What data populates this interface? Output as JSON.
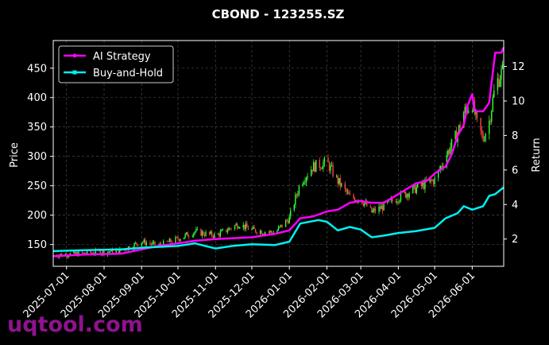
{
  "chart_data": {
    "type": "line",
    "title": "CBOND - 123255.SZ",
    "ylabel": "Price",
    "ylabel_right": "Return",
    "ylim": [
      113,
      497
    ],
    "ylim_right": [
      0.42,
      13.5
    ],
    "y_ticks": [
      150,
      200,
      250,
      300,
      350,
      400,
      450
    ],
    "y_ticks_right": [
      2,
      4,
      6,
      8,
      10,
      12
    ],
    "x_range": [
      "2025-06-20",
      "2026-06-27"
    ],
    "x_ticks": [
      "2025-07-01",
      "2025-08-01",
      "2025-09-01",
      "2025-10-01",
      "2025-11-01",
      "2025-12-01",
      "2026-01-01",
      "2026-02-01",
      "2026-03-01",
      "2026-04-01",
      "2026-05-01",
      "2026-06-01"
    ],
    "grid": true,
    "legend_position": "top-left",
    "colors": {
      "background": "#000000",
      "ai": "#ff00ff",
      "bh": "#00f0f0",
      "up": "#33ff33",
      "down": "#ff4444"
    },
    "series": [
      {
        "name": "AI Strategy",
        "axis": "right",
        "points": [
          [
            "2025-06-20",
            1.0
          ],
          [
            "2025-07-15",
            1.1
          ],
          [
            "2025-08-15",
            1.15
          ],
          [
            "2025-09-01",
            1.4
          ],
          [
            "2025-09-15",
            1.6
          ],
          [
            "2025-10-01",
            1.75
          ],
          [
            "2025-10-15",
            1.9
          ],
          [
            "2025-11-01",
            2.0
          ],
          [
            "2025-12-01",
            2.1
          ],
          [
            "2025-12-20",
            2.3
          ],
          [
            "2026-01-01",
            2.5
          ],
          [
            "2026-01-10",
            3.2
          ],
          [
            "2026-01-20",
            3.3
          ],
          [
            "2026-02-01",
            3.6
          ],
          [
            "2026-02-10",
            3.7
          ],
          [
            "2026-02-20",
            4.1
          ],
          [
            "2026-03-01",
            4.2
          ],
          [
            "2026-03-10",
            4.1
          ],
          [
            "2026-03-20",
            4.1
          ],
          [
            "2026-04-01",
            4.6
          ],
          [
            "2026-04-15",
            5.2
          ],
          [
            "2026-04-25",
            5.4
          ],
          [
            "2026-05-01",
            5.8
          ],
          [
            "2026-05-10",
            6.2
          ],
          [
            "2026-05-15",
            6.9
          ],
          [
            "2026-05-20",
            8.0
          ],
          [
            "2026-05-25",
            8.6
          ],
          [
            "2026-05-28",
            9.7
          ],
          [
            "2026-06-01",
            10.4
          ],
          [
            "2026-06-03",
            9.4
          ],
          [
            "2026-06-10",
            9.4
          ],
          [
            "2026-06-15",
            9.9
          ],
          [
            "2026-06-20",
            12.8
          ],
          [
            "2026-06-25",
            12.8
          ],
          [
            "2026-06-27",
            13.1
          ]
        ]
      },
      {
        "name": "Buy-and-Hold",
        "axis": "right",
        "points": [
          [
            "2025-06-20",
            1.3
          ],
          [
            "2025-07-15",
            1.35
          ],
          [
            "2025-08-15",
            1.4
          ],
          [
            "2025-09-01",
            1.5
          ],
          [
            "2025-10-01",
            1.6
          ],
          [
            "2025-10-15",
            1.75
          ],
          [
            "2025-11-01",
            1.45
          ],
          [
            "2025-11-15",
            1.6
          ],
          [
            "2025-12-01",
            1.7
          ],
          [
            "2025-12-20",
            1.65
          ],
          [
            "2026-01-01",
            1.85
          ],
          [
            "2026-01-10",
            2.9
          ],
          [
            "2026-01-25",
            3.1
          ],
          [
            "2026-02-01",
            3.0
          ],
          [
            "2026-02-10",
            2.5
          ],
          [
            "2026-02-20",
            2.7
          ],
          [
            "2026-03-01",
            2.55
          ],
          [
            "2026-03-10",
            2.1
          ],
          [
            "2026-03-20",
            2.2
          ],
          [
            "2026-04-01",
            2.35
          ],
          [
            "2026-04-15",
            2.45
          ],
          [
            "2026-05-01",
            2.65
          ],
          [
            "2026-05-10",
            3.2
          ],
          [
            "2026-05-20",
            3.5
          ],
          [
            "2026-05-25",
            3.9
          ],
          [
            "2026-06-01",
            3.7
          ],
          [
            "2026-06-10",
            3.9
          ],
          [
            "2026-06-15",
            4.5
          ],
          [
            "2026-06-20",
            4.6
          ],
          [
            "2026-06-27",
            5.0
          ]
        ]
      }
    ],
    "price_path": [
      [
        "2025-06-20",
        132
      ],
      [
        "2025-07-15",
        135
      ],
      [
        "2025-08-15",
        140
      ],
      [
        "2025-09-01",
        155
      ],
      [
        "2025-09-15",
        148
      ],
      [
        "2025-10-01",
        160
      ],
      [
        "2025-10-15",
        172
      ],
      [
        "2025-11-01",
        165
      ],
      [
        "2025-11-20",
        185
      ],
      [
        "2025-12-01",
        175
      ],
      [
        "2025-12-20",
        170
      ],
      [
        "2026-01-01",
        195
      ],
      [
        "2026-01-10",
        255
      ],
      [
        "2026-01-20",
        282
      ],
      [
        "2026-02-01",
        290
      ],
      [
        "2026-02-10",
        258
      ],
      [
        "2026-02-20",
        230
      ],
      [
        "2026-03-01",
        228
      ],
      [
        "2026-03-10",
        205
      ],
      [
        "2026-03-20",
        215
      ],
      [
        "2026-04-01",
        230
      ],
      [
        "2026-04-15",
        245
      ],
      [
        "2026-05-01",
        260
      ],
      [
        "2026-05-10",
        300
      ],
      [
        "2026-05-20",
        340
      ],
      [
        "2026-05-25",
        375
      ],
      [
        "2026-06-01",
        390
      ],
      [
        "2026-06-05",
        355
      ],
      [
        "2026-06-10",
        330
      ],
      [
        "2026-06-15",
        360
      ],
      [
        "2026-06-20",
        420
      ],
      [
        "2026-06-27",
        450
      ]
    ]
  },
  "watermark": "uqtool.com"
}
